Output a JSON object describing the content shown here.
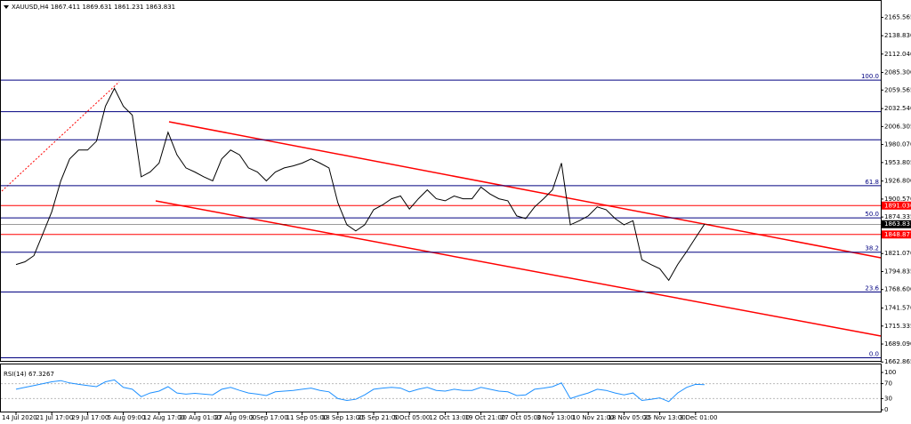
{
  "chart_data": [
    {
      "type": "line",
      "title": "XAUUSD,H4  1867.411 1869.631 1861.231 1863.831",
      "color": "#000000",
      "categories": [
        "14 Jul 2020",
        null,
        null,
        null,
        "21 Jul 17:00",
        null,
        null,
        null,
        "29 Jul 17:00",
        null,
        null,
        null,
        "5 Aug 09:00",
        null,
        null,
        null,
        "12 Aug 17:00",
        null,
        null,
        null,
        "20 Aug 01:00",
        null,
        null,
        null,
        "27 Aug 09:00",
        null,
        null,
        null,
        "3 Sep 17:00",
        null,
        null,
        null,
        "11 Sep 05:00",
        null,
        null,
        null,
        "18 Sep 13:00",
        null,
        null,
        null,
        "25 Sep 21:00",
        null,
        null,
        null,
        "5 Oct 05:00",
        null,
        null,
        null,
        "12 Oct 13:00",
        null,
        null,
        null,
        "19 Oct 21:00",
        null,
        null,
        null,
        "27 Oct 05:00",
        null,
        null,
        null,
        "3 Nov 13:00",
        null,
        null,
        null,
        "10 Nov 21:00",
        null,
        null,
        null,
        "18 Nov 05:00",
        null,
        null,
        null,
        "25 Nov 13:00",
        null,
        null,
        null,
        "3 Dec 01:00",
        null
      ],
      "values": [
        1805,
        1809,
        1818,
        1850,
        1882,
        1927,
        1959,
        1972,
        1972,
        1985,
        2036,
        2062,
        2036,
        2023,
        1933,
        1940,
        1953,
        1998,
        1965,
        1946,
        1940,
        1933,
        1927,
        1959,
        1972,
        1965,
        1946,
        1940,
        1927,
        1940,
        1946,
        1949,
        1953,
        1959,
        1953,
        1946,
        1895,
        1863,
        1854,
        1863,
        1885,
        1892,
        1901,
        1905,
        1886,
        1901,
        1914,
        1901,
        1898,
        1905,
        1901,
        1901,
        1918,
        1908,
        1901,
        1898,
        1876,
        1872,
        1889,
        1901,
        1914,
        1953,
        1863,
        1869,
        1876,
        1889,
        1885,
        1872,
        1863,
        1869,
        1812,
        1805,
        1799,
        1782,
        1805,
        1824,
        1844,
        1863.831
      ],
      "ylim": [
        1658,
        2187
      ],
      "yticks": [
        2165.565,
        {
          "value": 2138.83,
          "label": "2138.830"
        },
        {
          "value": 2112.04,
          "label": "2112.040"
        },
        {
          "value": 2085.3,
          "label": "2085.300"
        },
        2059.565,
        {
          "value": 2032.54,
          "label": "2032.540"
        },
        2006.305,
        {
          "value": 1980.07,
          "label": "1980.070"
        },
        1953.805,
        {
          "value": 1926.8,
          "label": "1926.800"
        },
        {
          "value": 1900.57,
          "label": "1900.570"
        },
        1874.335,
        {
          "value": 1821.07,
          "label": "1821.070"
        },
        1794.835,
        {
          "value": 1768.6,
          "label": "1768.600"
        },
        {
          "value": 1741.57,
          "label": "1741.570"
        },
        1715.335,
        {
          "value": 1689.09,
          "label": "1689.090"
        },
        1662.865
      ],
      "fib_levels": [
        {
          "value": 2074,
          "label": "100.0"
        },
        {
          "value": 1920,
          "label": "61.8"
        },
        {
          "value": 1873,
          "label": "50.0"
        },
        {
          "value": 1823,
          "label": "38.2"
        },
        {
          "value": 1765,
          "label": "23.6"
        },
        {
          "value": 1669,
          "label": "0.0"
        }
      ],
      "hlines": [
        2028,
        1987
      ],
      "price_lines": [
        {
          "value": 1891.036,
          "color": "#ff0000"
        },
        {
          "value": 1863.831,
          "color": "#000000"
        },
        {
          "value": 1848.871,
          "color": "#ff0000"
        }
      ]
    },
    {
      "type": "line",
      "title": "RSI(14) 67.3267",
      "color": "#1e90ff",
      "values": [
        55,
        60,
        65,
        70,
        75,
        78,
        72,
        68,
        65,
        62,
        75,
        80,
        60,
        55,
        35,
        45,
        50,
        62,
        45,
        42,
        44,
        42,
        40,
        55,
        60,
        52,
        45,
        42,
        38,
        48,
        50,
        52,
        55,
        58,
        52,
        48,
        30,
        25,
        28,
        40,
        55,
        58,
        60,
        58,
        48,
        55,
        60,
        52,
        50,
        55,
        52,
        52,
        60,
        55,
        50,
        48,
        38,
        40,
        55,
        58,
        62,
        72,
        30,
        38,
        45,
        55,
        52,
        45,
        40,
        45,
        25,
        28,
        32,
        22,
        45,
        60,
        68,
        67.3267
      ],
      "ylim": [
        0,
        100
      ],
      "yticks": [
        100,
        70,
        30,
        0
      ]
    }
  ]
}
